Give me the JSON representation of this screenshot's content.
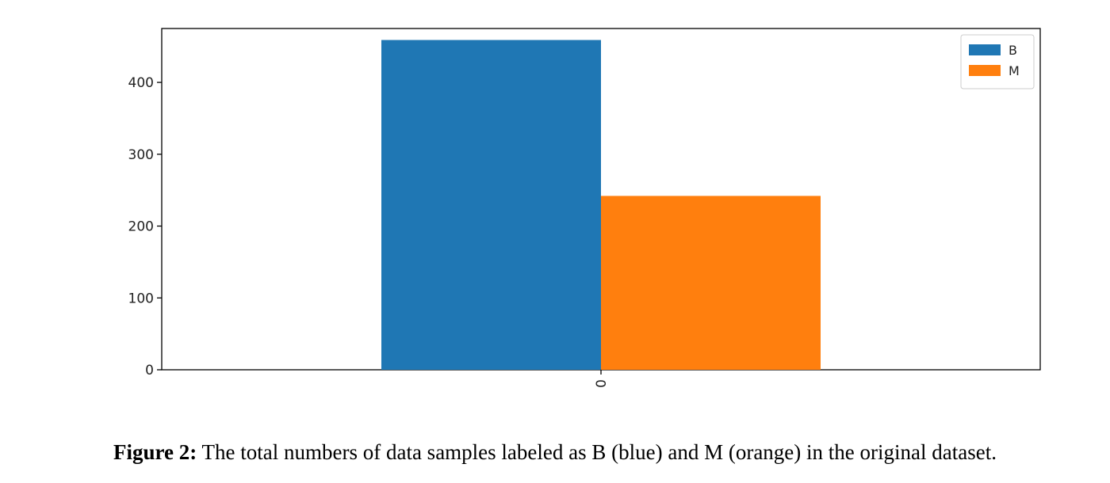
{
  "chart_data": {
    "type": "bar",
    "title": "",
    "xlabel": "",
    "ylabel": "",
    "categories": [
      "0"
    ],
    "series": [
      {
        "name": "B",
        "values": [
          459
        ],
        "color": "#1f77b4"
      },
      {
        "name": "M",
        "values": [
          242
        ],
        "color": "#ff7f0e"
      }
    ],
    "ylim": [
      0,
      475
    ],
    "yticks": [
      0,
      100,
      200,
      300,
      400
    ],
    "legend_position": "top-right",
    "grid": false
  },
  "caption": {
    "label": "Figure 2:",
    "text": " The total numbers of data samples labeled as B (blue) and M (orange) in the original dataset."
  }
}
